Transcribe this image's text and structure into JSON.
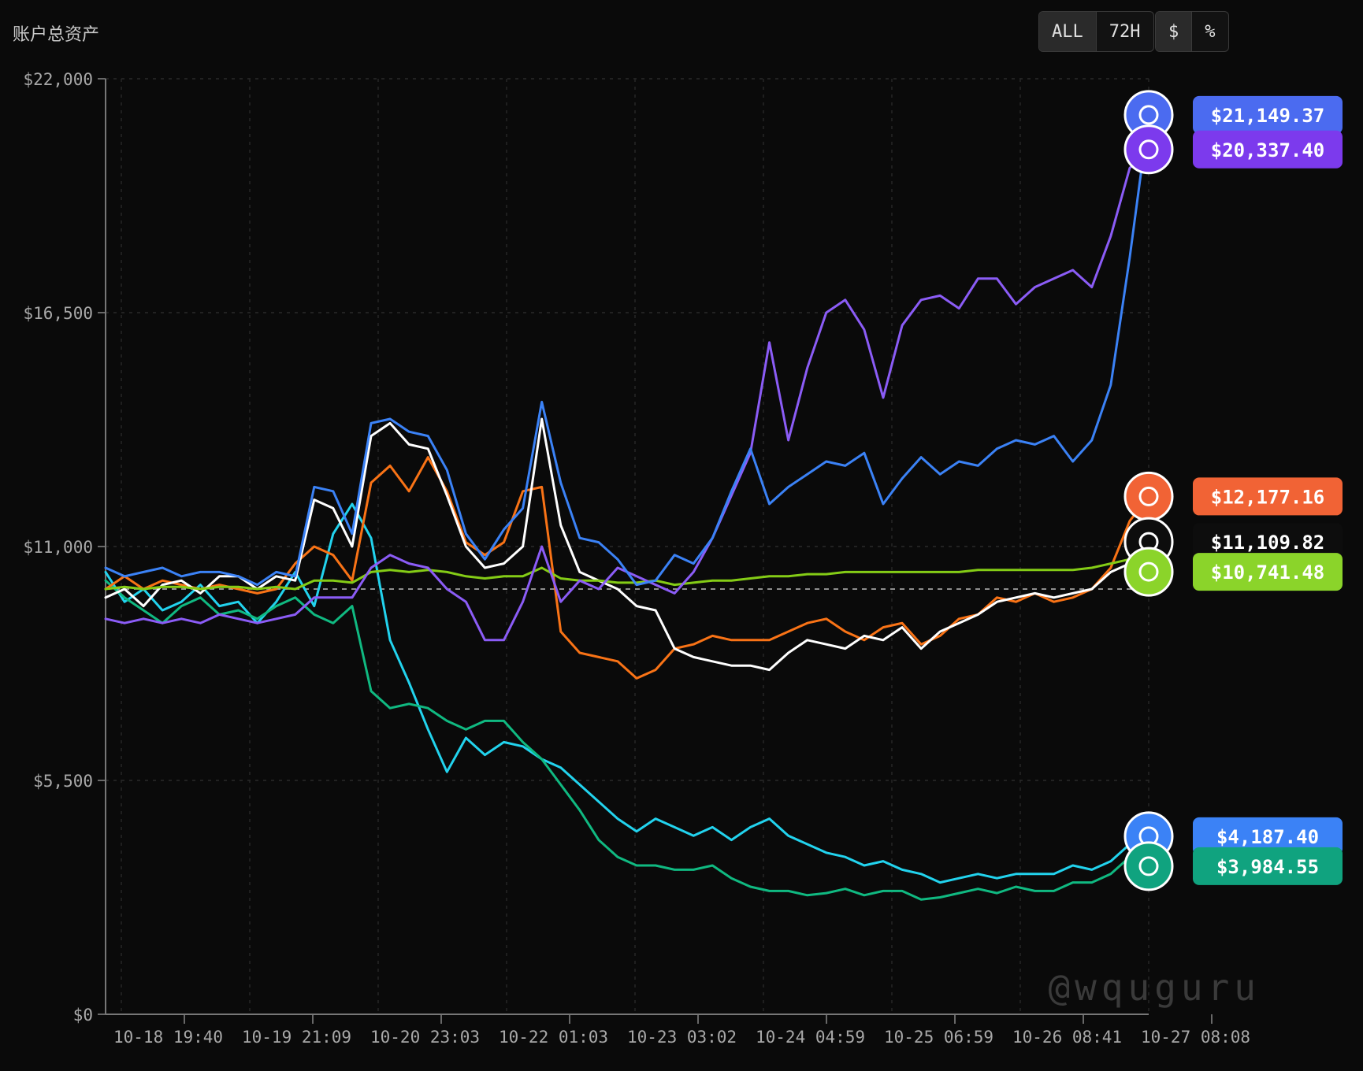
{
  "header": {
    "title": "账户总资产"
  },
  "range_buttons": [
    "ALL",
    "72H"
  ],
  "unit_buttons": [
    "$",
    "%"
  ],
  "active": {
    "range": "ALL",
    "unit": "$"
  },
  "watermark": "@wquguru",
  "chart_data": {
    "type": "line",
    "ylim": [
      0,
      22000
    ],
    "y_ticks": [
      0,
      5500,
      11000,
      16500,
      22000
    ],
    "y_tick_labels": [
      "$0",
      "$5,500",
      "$11,000",
      "$16,500",
      "$22,000"
    ],
    "x_tick_labels": [
      "10-18 19:40",
      "10-19 21:09",
      "10-20 23:03",
      "10-22 01:03",
      "10-23 03:02",
      "10-24 04:59",
      "10-25 06:59",
      "10-26 08:41",
      "10-27 08:08"
    ],
    "baseline": 10000,
    "grid": true,
    "series": [
      {
        "color": "#22d3ee",
        "label": "$4,187.40",
        "icon": "sparkle-icon",
        "pill_color": "#3b82f6",
        "values": [
          10400,
          9700,
          10000,
          9500,
          9700,
          10100,
          9600,
          9700,
          9200,
          9700,
          10400,
          9600,
          11300,
          12000,
          11200,
          8800,
          7800,
          6700,
          5700,
          6500,
          6100,
          6400,
          6300,
          6000,
          5800,
          5400,
          5000,
          4600,
          4300,
          4600,
          4400,
          4200,
          4400,
          4100,
          4400,
          4600,
          4200,
          4000,
          3800,
          3700,
          3500,
          3600,
          3400,
          3300,
          3100,
          3200,
          3300,
          3200,
          3300,
          3300,
          3300,
          3500,
          3400,
          3600,
          4000,
          4187.4
        ]
      },
      {
        "color": "#10b981",
        "label": "$3,984.55",
        "icon": "chatgpt-icon",
        "pill_color": "#10a37f",
        "values": [
          10200,
          9800,
          9500,
          9200,
          9600,
          9800,
          9400,
          9500,
          9300,
          9600,
          9800,
          9400,
          9200,
          9600,
          7600,
          7200,
          7300,
          7200,
          6900,
          6700,
          6900,
          6900,
          6400,
          6000,
          5400,
          4800,
          4100,
          3700,
          3500,
          3500,
          3400,
          3400,
          3500,
          3200,
          3000,
          2900,
          2900,
          2800,
          2850,
          2950,
          2800,
          2900,
          2900,
          2700,
          2750,
          2850,
          2950,
          2850,
          3000,
          2900,
          2900,
          3100,
          3100,
          3300,
          3700,
          3984.55
        ]
      },
      {
        "color": "#f97316",
        "label": "$12,177.16",
        "icon": "claude-icon",
        "pill_color": "#f16335",
        "values": [
          10000,
          10300,
          10000,
          10200,
          10100,
          10000,
          10100,
          10000,
          9900,
          10000,
          10600,
          11000,
          10800,
          10200,
          12500,
          12900,
          12300,
          13100,
          12300,
          11100,
          10800,
          11100,
          12300,
          12400,
          9000,
          8500,
          8400,
          8300,
          7900,
          8100,
          8600,
          8700,
          8900,
          8800,
          8800,
          8800,
          9000,
          9200,
          9300,
          9000,
          8800,
          9100,
          9200,
          8700,
          8900,
          9300,
          9400,
          9800,
          9700,
          9900,
          9700,
          9800,
          10000,
          10500,
          11600,
          12177.16
        ]
      },
      {
        "color": "#ffffff",
        "label": "$11,109.82",
        "icon": "grok-icon",
        "pill_color": "#0d0d0d",
        "values": [
          9800,
          10000,
          9600,
          10100,
          10200,
          9900,
          10300,
          10300,
          10000,
          10300,
          10200,
          12100,
          11900,
          11000,
          13600,
          13900,
          13400,
          13300,
          12200,
          11000,
          10500,
          10600,
          11000,
          14000,
          11500,
          10400,
          10200,
          10000,
          9600,
          9500,
          8600,
          8400,
          8300,
          8200,
          8200,
          8100,
          8500,
          8800,
          8700,
          8600,
          8900,
          8800,
          9100,
          8600,
          9000,
          9200,
          9400,
          9700,
          9800,
          9900,
          9800,
          9900,
          10000,
          10400,
          10600,
          11109.82
        ]
      },
      {
        "color": "#84cc16",
        "label": "$10,741.48",
        "icon": "bitcoin-icon",
        "pill_color": "#8bd42a",
        "values": [
          10000,
          10050,
          10000,
          10050,
          10050,
          10000,
          10050,
          10050,
          10000,
          10050,
          10000,
          10200,
          10200,
          10150,
          10400,
          10450,
          10400,
          10450,
          10400,
          10300,
          10250,
          10300,
          10300,
          10500,
          10250,
          10200,
          10200,
          10150,
          10150,
          10200,
          10100,
          10150,
          10200,
          10200,
          10250,
          10300,
          10300,
          10350,
          10350,
          10400,
          10400,
          10400,
          10400,
          10400,
          10400,
          10400,
          10450,
          10450,
          10450,
          10450,
          10450,
          10450,
          10500,
          10600,
          10700,
          10741.48
        ]
      },
      {
        "color": "#8b5cf6",
        "label": "$20,337.40",
        "icon": "kimi-icon",
        "pill_color": "#7c3aed",
        "values": [
          9300,
          9200,
          9300,
          9200,
          9300,
          9200,
          9400,
          9300,
          9200,
          9300,
          9400,
          9800,
          9800,
          9800,
          10500,
          10800,
          10600,
          10500,
          10000,
          9700,
          8800,
          8800,
          9700,
          11000,
          9700,
          10200,
          10000,
          10500,
          10300,
          10100,
          9900,
          10400,
          11200,
          12200,
          13200,
          15800,
          13500,
          15200,
          16500,
          16800,
          16100,
          14500,
          16200,
          16800,
          16900,
          16600,
          17300,
          17300,
          16700,
          17100,
          17300,
          17500,
          17100,
          18300,
          19900,
          20337.4
        ]
      },
      {
        "color": "#3b82f6",
        "label": "$21,149.37",
        "icon": "deepseek-icon",
        "pill_color": "#4b6bf0",
        "values": [
          10500,
          10300,
          10400,
          10500,
          10300,
          10400,
          10400,
          10300,
          10100,
          10400,
          10300,
          12400,
          12300,
          11300,
          13900,
          14000,
          13700,
          13600,
          12800,
          11300,
          10700,
          11400,
          11900,
          14400,
          12500,
          11200,
          11100,
          10700,
          10100,
          10200,
          10800,
          10600,
          11200,
          12300,
          13300,
          12000,
          12400,
          12700,
          13000,
          12900,
          13200,
          12000,
          12600,
          13100,
          12700,
          13000,
          12900,
          13300,
          13500,
          13400,
          13600,
          13000,
          13500,
          14800,
          17800,
          21149.37
        ]
      }
    ]
  }
}
